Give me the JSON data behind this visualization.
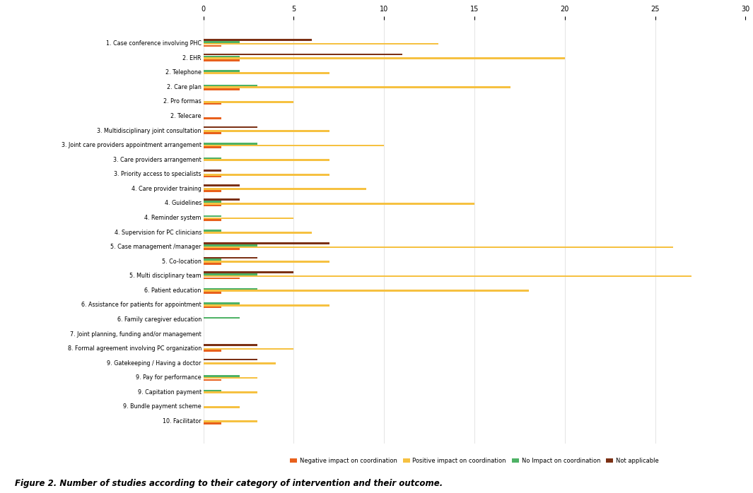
{
  "categories": [
    "1. Case conference involving PHC",
    "2. EHR",
    "2. Telephone",
    "2. Care plan",
    "2. Pro formas",
    "2. Telecare",
    "3. Multidisciplinary joint consultation",
    "3. Joint care providers appointment arrangement",
    "3. Care providers arrangement",
    "3. Priority access to specialists",
    "4. Care provider training",
    "4. Guidelines",
    "4. Reminder system",
    "4. Supervision for PC clinicians",
    "5. Case management /manager",
    "5. Co-location",
    "5. Multi disciplinary team",
    "6. Patient education",
    "6. Assistance for patients for appointment",
    "6. Family caregiver education",
    "7. Joint planning, funding and/or management",
    "8. Formal agreement involving PC organization",
    "9. Gatekeeping / Having a doctor",
    "9. Pay for performance",
    "9. Capitation payment",
    "9. Bundle payment scheme",
    "10. Facilitator"
  ],
  "negative_impact": [
    1,
    2,
    0,
    2,
    1,
    1,
    1,
    1,
    0,
    1,
    1,
    1,
    1,
    0,
    2,
    1,
    2,
    1,
    1,
    0,
    0,
    1,
    0,
    1,
    0,
    0,
    1
  ],
  "positive_impact": [
    13,
    20,
    7,
    17,
    5,
    0,
    7,
    10,
    7,
    7,
    9,
    15,
    5,
    6,
    26,
    7,
    27,
    18,
    7,
    0,
    0,
    5,
    4,
    3,
    3,
    2,
    3
  ],
  "no_impact": [
    2,
    2,
    2,
    3,
    0,
    0,
    0,
    3,
    1,
    0,
    0,
    1,
    1,
    1,
    3,
    1,
    3,
    3,
    2,
    2,
    0,
    0,
    0,
    2,
    1,
    0,
    0
  ],
  "not_applicable": [
    6,
    11,
    0,
    0,
    0,
    0,
    3,
    0,
    0,
    1,
    2,
    2,
    0,
    0,
    7,
    3,
    5,
    0,
    0,
    0,
    0,
    3,
    3,
    0,
    0,
    0,
    0
  ],
  "colors": {
    "negative_impact": "#E8601C",
    "positive_impact": "#F6C141",
    "no_impact": "#4EB265",
    "not_applicable": "#7B3014"
  },
  "legend_labels": [
    "Negative impact on coordination",
    "Positive impact on coordination",
    "No Impact on coordination",
    "Not applicable"
  ],
  "xlim": [
    0,
    30
  ],
  "xticks": [
    0,
    5,
    10,
    15,
    20,
    25,
    30
  ],
  "background_color": "#ffffff",
  "title_caption": "Figure 2. Number of studies according to their category of intervention and their outcome."
}
